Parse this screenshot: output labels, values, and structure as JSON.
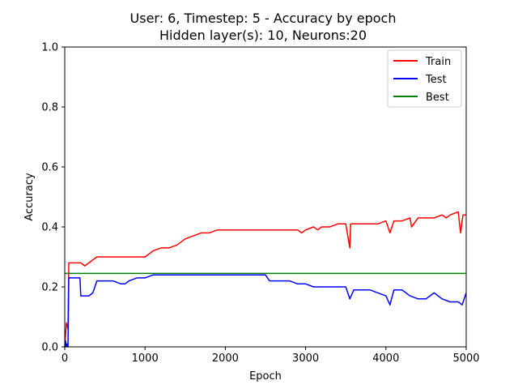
{
  "chart_data": {
    "type": "line",
    "title": "User: 6, Timestep: 5 - Accuracy by epoch",
    "subtitle": "Hidden layer(s): 10, Neurons:20",
    "xlabel": "Epoch",
    "ylabel": "Accuracy",
    "xlim": [
      0,
      5000
    ],
    "ylim": [
      0.0,
      1.0
    ],
    "xticks": [
      "0",
      "1000",
      "2000",
      "3000",
      "4000",
      "5000"
    ],
    "yticks": [
      "0.0",
      "0.2",
      "0.4",
      "0.6",
      "0.8",
      "1.0"
    ],
    "grid": false,
    "legend_position": "top-right",
    "series": [
      {
        "name": "Train",
        "color": "#ff0000",
        "x": [
          0,
          20,
          40,
          50,
          60,
          100,
          150,
          200,
          250,
          300,
          350,
          400,
          450,
          500,
          600,
          700,
          800,
          900,
          1000,
          1050,
          1100,
          1200,
          1300,
          1400,
          1500,
          1600,
          1700,
          1800,
          1900,
          2000,
          2100,
          2200,
          2300,
          2400,
          2500,
          2600,
          2700,
          2800,
          2900,
          2950,
          3000,
          3100,
          3150,
          3200,
          3300,
          3400,
          3500,
          3550,
          3560,
          3600,
          3700,
          3800,
          3900,
          4000,
          4050,
          4100,
          4200,
          4300,
          4320,
          4400,
          4500,
          4600,
          4700,
          4750,
          4800,
          4900,
          4930,
          4960,
          5000
        ],
        "values": [
          0.0,
          0.08,
          0.06,
          0.28,
          0.28,
          0.28,
          0.28,
          0.28,
          0.27,
          0.28,
          0.29,
          0.3,
          0.3,
          0.3,
          0.3,
          0.3,
          0.3,
          0.3,
          0.3,
          0.31,
          0.32,
          0.33,
          0.33,
          0.34,
          0.36,
          0.37,
          0.38,
          0.38,
          0.39,
          0.39,
          0.39,
          0.39,
          0.39,
          0.39,
          0.39,
          0.39,
          0.39,
          0.39,
          0.39,
          0.38,
          0.39,
          0.4,
          0.39,
          0.4,
          0.4,
          0.41,
          0.41,
          0.33,
          0.41,
          0.41,
          0.41,
          0.41,
          0.41,
          0.42,
          0.38,
          0.42,
          0.42,
          0.43,
          0.4,
          0.43,
          0.43,
          0.43,
          0.44,
          0.43,
          0.44,
          0.45,
          0.38,
          0.44,
          0.44
        ]
      },
      {
        "name": "Test",
        "color": "#0000ff",
        "x": [
          0,
          10,
          20,
          30,
          40,
          50,
          60,
          100,
          150,
          190,
          200,
          250,
          300,
          350,
          400,
          450,
          500,
          550,
          600,
          700,
          750,
          800,
          900,
          1000,
          1100,
          1200,
          1300,
          1400,
          1500,
          1600,
          1700,
          1800,
          1900,
          2000,
          2100,
          2200,
          2300,
          2400,
          2500,
          2550,
          2600,
          2700,
          2800,
          2900,
          3000,
          3100,
          3200,
          3300,
          3400,
          3500,
          3550,
          3600,
          3700,
          3800,
          3900,
          4000,
          4050,
          4100,
          4200,
          4300,
          4400,
          4500,
          4600,
          4700,
          4800,
          4900,
          4950,
          5000
        ],
        "values": [
          0.0,
          0.02,
          0.0,
          0.01,
          0.0,
          0.23,
          0.23,
          0.23,
          0.23,
          0.23,
          0.17,
          0.17,
          0.17,
          0.18,
          0.22,
          0.22,
          0.22,
          0.22,
          0.22,
          0.21,
          0.21,
          0.22,
          0.23,
          0.23,
          0.24,
          0.24,
          0.24,
          0.24,
          0.24,
          0.24,
          0.24,
          0.24,
          0.24,
          0.24,
          0.24,
          0.24,
          0.24,
          0.24,
          0.24,
          0.22,
          0.22,
          0.22,
          0.22,
          0.21,
          0.21,
          0.2,
          0.2,
          0.2,
          0.2,
          0.2,
          0.16,
          0.19,
          0.19,
          0.19,
          0.18,
          0.17,
          0.14,
          0.19,
          0.19,
          0.17,
          0.16,
          0.16,
          0.18,
          0.16,
          0.15,
          0.15,
          0.14,
          0.18
        ]
      },
      {
        "name": "Best",
        "color": "#008000",
        "x": [
          0,
          5000
        ],
        "values": [
          0.245,
          0.245
        ]
      }
    ]
  }
}
